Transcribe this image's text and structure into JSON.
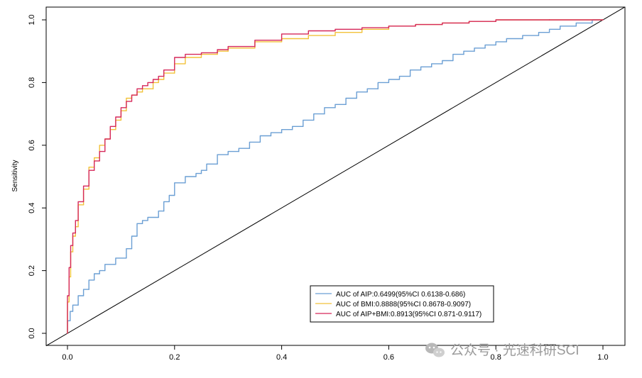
{
  "chart_data": {
    "type": "line",
    "title": "",
    "xlabel": "",
    "ylabel": "Sensitivity",
    "xlim": [
      0,
      1
    ],
    "ylim": [
      0,
      1
    ],
    "x_ticks": [
      "0.0",
      "0.2",
      "0.4",
      "0.6",
      "0.8",
      "1.0"
    ],
    "y_ticks": [
      "0.0",
      "0.2",
      "0.4",
      "0.6",
      "0.8",
      "1.0"
    ],
    "legend_position": "bottom-center",
    "reference_line": {
      "x": [
        0,
        1
      ],
      "y": [
        0,
        1
      ],
      "color": "#000000"
    },
    "series": [
      {
        "name": "AUC of AIP:0.6499(95%CI 0.6138-0.686)",
        "color": "#6b9fd4",
        "x": [
          0,
          0.005,
          0.01,
          0.02,
          0.03,
          0.04,
          0.05,
          0.06,
          0.07,
          0.09,
          0.11,
          0.12,
          0.13,
          0.14,
          0.15,
          0.17,
          0.18,
          0.19,
          0.2,
          0.22,
          0.24,
          0.25,
          0.26,
          0.28,
          0.3,
          0.32,
          0.34,
          0.36,
          0.38,
          0.4,
          0.42,
          0.44,
          0.46,
          0.48,
          0.5,
          0.52,
          0.54,
          0.56,
          0.58,
          0.6,
          0.62,
          0.64,
          0.66,
          0.68,
          0.7,
          0.72,
          0.74,
          0.76,
          0.78,
          0.8,
          0.82,
          0.85,
          0.88,
          0.9,
          0.92,
          0.95,
          0.98,
          1.0
        ],
        "y": [
          0,
          0.04,
          0.07,
          0.09,
          0.12,
          0.14,
          0.17,
          0.19,
          0.2,
          0.22,
          0.24,
          0.27,
          0.31,
          0.35,
          0.36,
          0.37,
          0.39,
          0.42,
          0.44,
          0.48,
          0.5,
          0.51,
          0.52,
          0.54,
          0.57,
          0.58,
          0.59,
          0.61,
          0.63,
          0.64,
          0.65,
          0.66,
          0.68,
          0.7,
          0.72,
          0.73,
          0.75,
          0.77,
          0.78,
          0.8,
          0.81,
          0.82,
          0.84,
          0.85,
          0.86,
          0.87,
          0.89,
          0.9,
          0.91,
          0.92,
          0.93,
          0.94,
          0.95,
          0.96,
          0.97,
          0.98,
          0.99,
          1.0
        ]
      },
      {
        "name": "AUC of BMI:0.8888(95%CI 0.8678-0.9097)",
        "color": "#f2c23a",
        "x": [
          0,
          0.003,
          0.006,
          0.01,
          0.015,
          0.02,
          0.03,
          0.04,
          0.05,
          0.06,
          0.07,
          0.08,
          0.09,
          0.1,
          0.11,
          0.12,
          0.13,
          0.14,
          0.15,
          0.16,
          0.17,
          0.18,
          0.2,
          0.22,
          0.25,
          0.28,
          0.3,
          0.35,
          0.4,
          0.45,
          0.5,
          0.55,
          0.6,
          0.65,
          0.7,
          0.75,
          0.8,
          0.9,
          1.0
        ],
        "y": [
          0,
          0.1,
          0.18,
          0.26,
          0.31,
          0.34,
          0.41,
          0.46,
          0.53,
          0.56,
          0.6,
          0.62,
          0.65,
          0.68,
          0.71,
          0.75,
          0.76,
          0.77,
          0.78,
          0.78,
          0.8,
          0.81,
          0.83,
          0.86,
          0.88,
          0.89,
          0.9,
          0.91,
          0.93,
          0.94,
          0.95,
          0.96,
          0.97,
          0.98,
          0.985,
          0.99,
          0.995,
          1.0,
          1.0
        ]
      },
      {
        "name": "AUC of AIP+BMI:0.8913(95%CI 0.871-0.9117)",
        "color": "#d6285a",
        "x": [
          0,
          0.003,
          0.006,
          0.01,
          0.015,
          0.02,
          0.03,
          0.04,
          0.05,
          0.06,
          0.07,
          0.08,
          0.09,
          0.1,
          0.11,
          0.12,
          0.13,
          0.14,
          0.15,
          0.16,
          0.17,
          0.18,
          0.2,
          0.22,
          0.25,
          0.28,
          0.3,
          0.35,
          0.4,
          0.45,
          0.5,
          0.55,
          0.6,
          0.65,
          0.7,
          0.75,
          0.8,
          0.9,
          1.0
        ],
        "y": [
          0,
          0.12,
          0.21,
          0.28,
          0.32,
          0.36,
          0.42,
          0.47,
          0.52,
          0.55,
          0.58,
          0.62,
          0.66,
          0.69,
          0.72,
          0.74,
          0.76,
          0.78,
          0.79,
          0.8,
          0.81,
          0.82,
          0.84,
          0.88,
          0.89,
          0.895,
          0.905,
          0.915,
          0.935,
          0.955,
          0.965,
          0.97,
          0.975,
          0.98,
          0.985,
          0.99,
          0.995,
          1.0,
          1.0
        ]
      }
    ]
  },
  "watermark": "公众号 · 光速科研SCI",
  "watermark_icon": "wechat-icon"
}
